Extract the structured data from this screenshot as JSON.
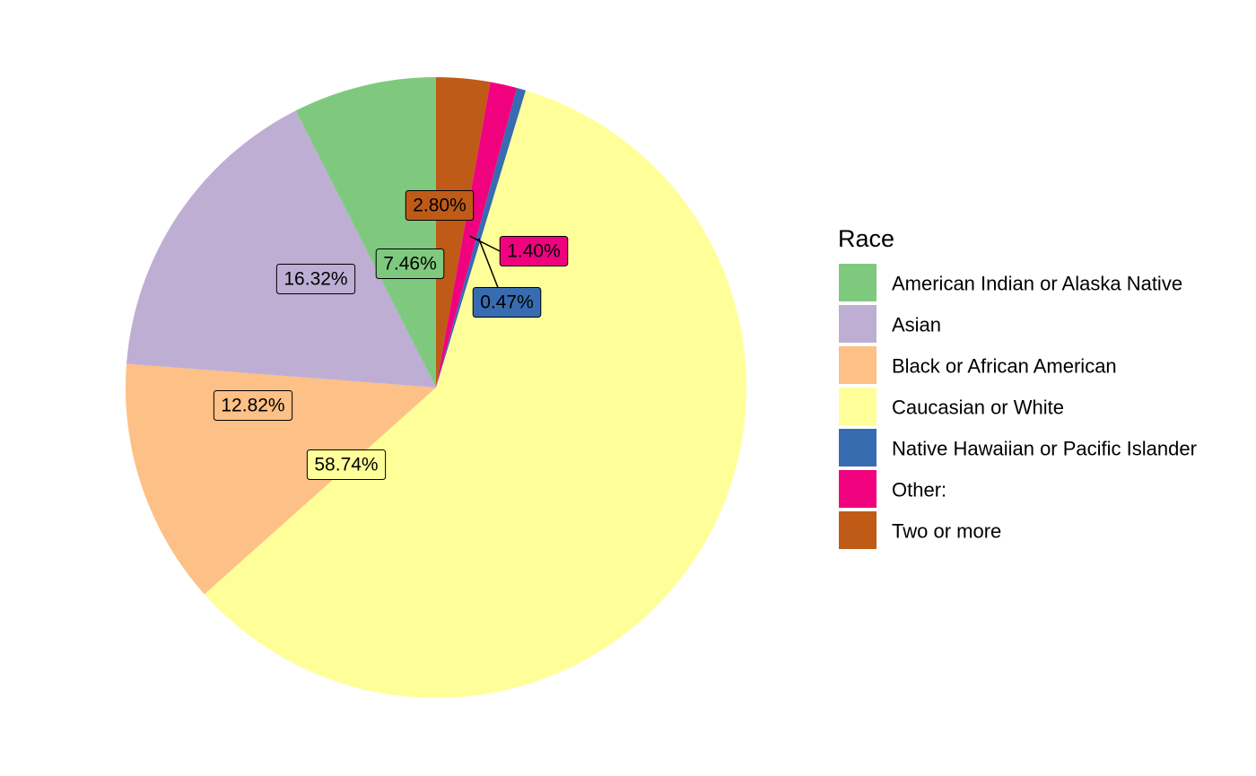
{
  "chart_data": {
    "type": "pie",
    "legend_title": "Race",
    "legend_position": "right",
    "slices": [
      {
        "name": "Two or more",
        "value": 2.8,
        "label": "2.80%",
        "color": "#BF5B17"
      },
      {
        "name": "Other:",
        "value": 1.4,
        "label": "1.40%",
        "color": "#F0027F"
      },
      {
        "name": "Native Hawaiian or Pacific Islander",
        "value": 0.47,
        "label": "0.47%",
        "color": "#386CB0"
      },
      {
        "name": "Caucasian or White",
        "value": 58.74,
        "label": "58.74%",
        "color": "#FFFF99"
      },
      {
        "name": "Black or African American",
        "value": 12.82,
        "label": "12.82%",
        "color": "#FDC086"
      },
      {
        "name": "Asian",
        "value": 16.32,
        "label": "16.32%",
        "color": "#BEAED4"
      },
      {
        "name": "American Indian or Alaska Native",
        "value": 7.46,
        "label": "7.46%",
        "color": "#7FC97F"
      }
    ],
    "legend_order": [
      "American Indian or Alaska Native",
      "Asian",
      "Black or African American",
      "Caucasian or White",
      "Native Hawaiian or Pacific Islander",
      "Other:",
      "Two or more"
    ]
  }
}
